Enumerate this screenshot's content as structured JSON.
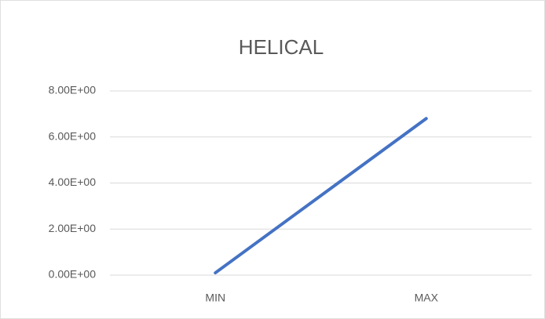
{
  "chart_data": {
    "type": "line",
    "title": "HELICAL",
    "categories": [
      "MIN",
      "MAX"
    ],
    "series": [
      {
        "name": "HELICAL",
        "color": "#4472c4",
        "values": [
          0.1,
          6.8
        ]
      }
    ],
    "ylim": [
      0,
      8
    ],
    "yticks": [
      {
        "value": 0,
        "label": "0.00E+00"
      },
      {
        "value": 2,
        "label": "2.00E+00"
      },
      {
        "value": 4,
        "label": "4.00E+00"
      },
      {
        "value": 6,
        "label": "6.00E+00"
      },
      {
        "value": 8,
        "label": "8.00E+00"
      }
    ],
    "grid": true
  }
}
